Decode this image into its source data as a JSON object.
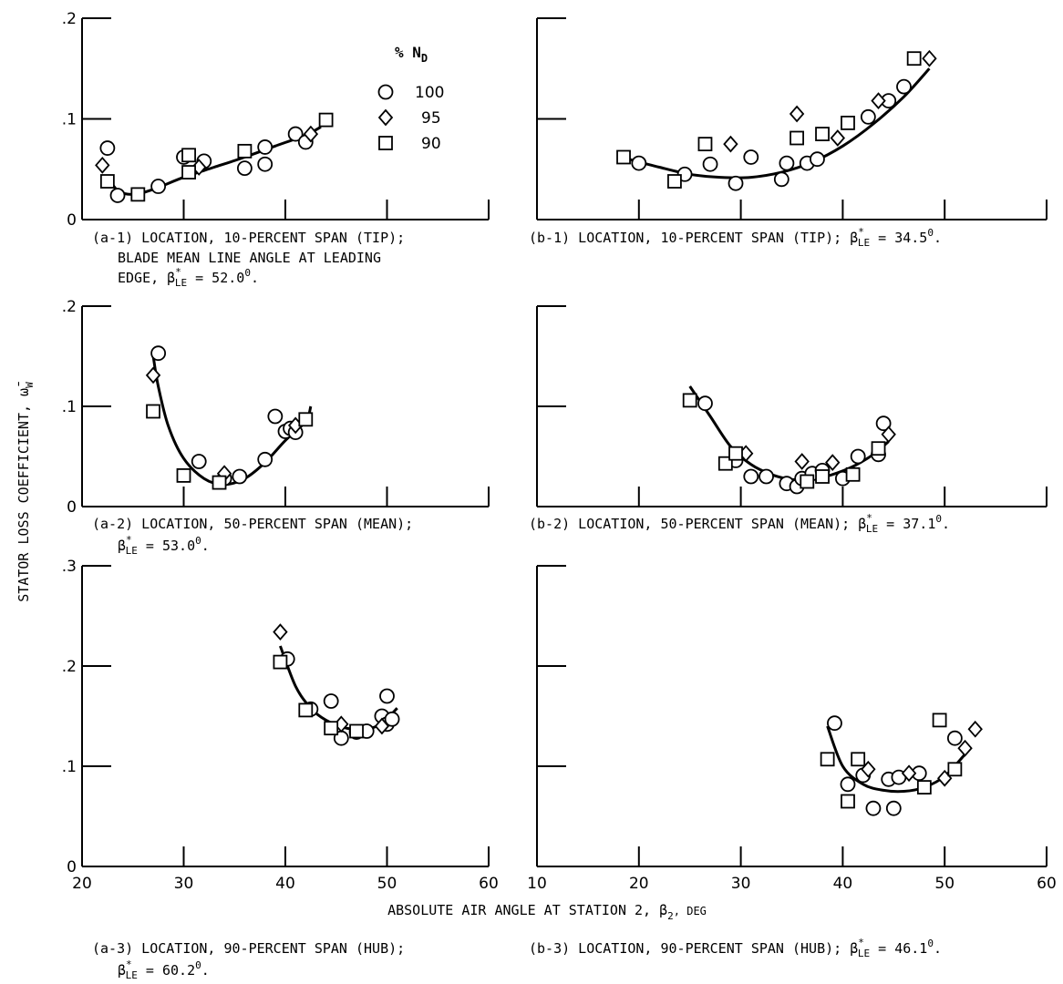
{
  "legend": {
    "title": "% N",
    "title_sub": "D",
    "entries": [
      {
        "label": "100",
        "marker": "circle"
      },
      {
        "label": "95",
        "marker": "diamond"
      },
      {
        "label": "90",
        "marker": "square"
      }
    ]
  },
  "y_axis_label": "STATOR LOSS COEFFICIENT, ω̄",
  "y_axis_label_sub": "W",
  "x_axis_label": "ABSOLUTE AIR ANGLE AT STATION 2, β",
  "x_axis_label_sub": "2",
  "x_axis_label_unit": ", DEG",
  "captions": {
    "a1_line1": "(a-1) LOCATION, 10-PERCENT SPAN (TIP);",
    "a1_line2": "BLADE MEAN LINE ANGLE AT LEADING",
    "a1_line3_pre": "EDGE, β",
    "a1_line3_post": " = 52.0",
    "a1_line3_end": ".",
    "b1_pre": "(b-1) LOCATION, 10-PERCENT SPAN (TIP); β",
    "b1_post": " = 34.5",
    "b1_end": ".",
    "a2_line1": "(a-2) LOCATION, 50-PERCENT SPAN (MEAN);",
    "a2_line2_pre": "β",
    "a2_line2_post": " = 53.0",
    "a2_line2_end": ".",
    "b2_pre": "(b-2) LOCATION, 50-PERCENT SPAN (MEAN); β",
    "b2_post": " = 37.1",
    "b2_end": ".",
    "a3_line1": "(a-3) LOCATION, 90-PERCENT SPAN (HUB);",
    "a3_line2_pre": "β",
    "a3_line2_post": " = 60.2",
    "a3_line2_end": ".",
    "b3_pre": "(b-3) LOCATION, 90-PERCENT SPAN (HUB); β",
    "b3_post": " = 46.1",
    "b3_end": ".",
    "sup_star": "*",
    "sub_LE": "LE",
    "sup_deg": "0"
  },
  "chart_data": [
    {
      "id": "a1",
      "type": "scatter",
      "xlim": [
        20,
        60
      ],
      "ylim": [
        0,
        0.2
      ],
      "xticks": [
        20,
        30,
        40,
        50,
        60
      ],
      "yticks": [
        0,
        0.1,
        0.2
      ],
      "ytick_labels": [
        "0",
        ".1",
        ".2"
      ],
      "series": [
        {
          "name": "100",
          "marker": "circle",
          "points": [
            [
              22.5,
              0.071
            ],
            [
              23.5,
              0.024
            ],
            [
              27.5,
              0.033
            ],
            [
              30,
              0.062
            ],
            [
              32,
              0.058
            ],
            [
              36,
              0.051
            ],
            [
              38,
              0.072
            ],
            [
              38,
              0.055
            ],
            [
              41,
              0.085
            ],
            [
              42,
              0.077
            ]
          ]
        },
        {
          "name": "95",
          "marker": "diamond",
          "points": [
            [
              22,
              0.054
            ],
            [
              31.5,
              0.052
            ],
            [
              42.5,
              0.085
            ]
          ]
        },
        {
          "name": "90",
          "marker": "square",
          "points": [
            [
              22.5,
              0.038
            ],
            [
              25.5,
              0.025
            ],
            [
              30.5,
              0.064
            ],
            [
              30.5,
              0.047
            ],
            [
              36,
              0.068
            ],
            [
              44,
              0.099
            ]
          ]
        }
      ],
      "curve": [
        [
          22.5,
          0.043
        ],
        [
          23.5,
          0.029
        ],
        [
          25,
          0.025
        ],
        [
          27,
          0.03
        ],
        [
          30,
          0.042
        ],
        [
          33,
          0.052
        ],
        [
          36,
          0.062
        ],
        [
          39,
          0.073
        ],
        [
          42,
          0.084
        ],
        [
          43.5,
          0.092
        ]
      ]
    },
    {
      "id": "b1",
      "type": "scatter",
      "xlim": [
        10,
        60
      ],
      "ylim": [
        0,
        0.2
      ],
      "xticks": [
        10,
        20,
        30,
        40,
        50,
        60
      ],
      "yticks": [
        0,
        0.1,
        0.2
      ],
      "series": [
        {
          "name": "100",
          "marker": "circle",
          "points": [
            [
              20,
              0.056
            ],
            [
              24.5,
              0.045
            ],
            [
              27,
              0.055
            ],
            [
              29.5,
              0.036
            ],
            [
              31,
              0.062
            ],
            [
              34,
              0.04
            ],
            [
              34.5,
              0.056
            ],
            [
              36.5,
              0.056
            ],
            [
              37.5,
              0.06
            ],
            [
              42.5,
              0.102
            ],
            [
              44.5,
              0.118
            ],
            [
              46,
              0.132
            ]
          ]
        },
        {
          "name": "95",
          "marker": "diamond",
          "points": [
            [
              29,
              0.075
            ],
            [
              35.5,
              0.105
            ],
            [
              39.5,
              0.081
            ],
            [
              43.5,
              0.118
            ],
            [
              48.5,
              0.16
            ]
          ]
        },
        {
          "name": "90",
          "marker": "square",
          "points": [
            [
              18.5,
              0.062
            ],
            [
              23.5,
              0.038
            ],
            [
              26.5,
              0.075
            ],
            [
              35.5,
              0.081
            ],
            [
              38,
              0.085
            ],
            [
              40.5,
              0.096
            ],
            [
              47,
              0.16
            ]
          ]
        }
      ],
      "curve": [
        [
          19,
          0.06
        ],
        [
          22,
          0.052
        ],
        [
          25,
          0.045
        ],
        [
          28,
          0.042
        ],
        [
          31,
          0.042
        ],
        [
          34,
          0.047
        ],
        [
          37,
          0.057
        ],
        [
          40,
          0.073
        ],
        [
          43,
          0.095
        ],
        [
          46,
          0.122
        ],
        [
          48.5,
          0.15
        ]
      ]
    },
    {
      "id": "a2",
      "type": "scatter",
      "xlim": [
        20,
        60
      ],
      "ylim": [
        0,
        0.2
      ],
      "xticks": [
        20,
        30,
        40,
        50,
        60
      ],
      "yticks": [
        0,
        0.1,
        0.2
      ],
      "ytick_labels": [
        "0",
        ".1",
        ".2"
      ],
      "series": [
        {
          "name": "100",
          "marker": "circle",
          "points": [
            [
              27.5,
              0.153
            ],
            [
              31.5,
              0.045
            ],
            [
              34,
              0.028
            ],
            [
              35.5,
              0.03
            ],
            [
              38,
              0.047
            ],
            [
              39,
              0.09
            ],
            [
              40,
              0.075
            ],
            [
              40.5,
              0.078
            ],
            [
              41,
              0.074
            ]
          ]
        },
        {
          "name": "95",
          "marker": "diamond",
          "points": [
            [
              27,
              0.131
            ],
            [
              34,
              0.033
            ],
            [
              41,
              0.081
            ]
          ]
        },
        {
          "name": "90",
          "marker": "square",
          "points": [
            [
              27,
              0.095
            ],
            [
              30,
              0.031
            ],
            [
              33.5,
              0.024
            ],
            [
              42,
              0.087
            ]
          ]
        }
      ],
      "curve": [
        [
          27,
          0.15
        ],
        [
          27.5,
          0.12
        ],
        [
          28.5,
          0.08
        ],
        [
          30,
          0.048
        ],
        [
          32,
          0.028
        ],
        [
          34,
          0.022
        ],
        [
          36,
          0.028
        ],
        [
          38,
          0.044
        ],
        [
          40,
          0.066
        ],
        [
          42,
          0.085
        ],
        [
          42.5,
          0.1
        ]
      ]
    },
    {
      "id": "b2",
      "type": "scatter",
      "xlim": [
        10,
        60
      ],
      "ylim": [
        0,
        0.2
      ],
      "xticks": [
        10,
        20,
        30,
        40,
        50,
        60
      ],
      "yticks": [
        0,
        0.1,
        0.2
      ],
      "series": [
        {
          "name": "100",
          "marker": "circle",
          "points": [
            [
              26.5,
              0.103
            ],
            [
              29.5,
              0.046
            ],
            [
              31,
              0.03
            ],
            [
              32.5,
              0.03
            ],
            [
              34.5,
              0.023
            ],
            [
              35.5,
              0.02
            ],
            [
              36,
              0.028
            ],
            [
              37,
              0.033
            ],
            [
              38,
              0.036
            ],
            [
              40,
              0.028
            ],
            [
              41.5,
              0.05
            ],
            [
              43.5,
              0.052
            ],
            [
              44,
              0.083
            ]
          ]
        },
        {
          "name": "95",
          "marker": "diamond",
          "points": [
            [
              30.5,
              0.053
            ],
            [
              36,
              0.045
            ],
            [
              39,
              0.044
            ],
            [
              44.5,
              0.072
            ]
          ]
        },
        {
          "name": "90",
          "marker": "square",
          "points": [
            [
              25,
              0.106
            ],
            [
              28.5,
              0.043
            ],
            [
              29.5,
              0.053
            ],
            [
              36.5,
              0.025
            ],
            [
              38,
              0.03
            ],
            [
              41,
              0.032
            ],
            [
              43.5,
              0.058
            ]
          ]
        }
      ],
      "curve": [
        [
          25,
          0.12
        ],
        [
          27,
          0.09
        ],
        [
          29,
          0.06
        ],
        [
          31,
          0.042
        ],
        [
          33,
          0.032
        ],
        [
          35,
          0.027
        ],
        [
          37,
          0.027
        ],
        [
          39,
          0.032
        ],
        [
          41,
          0.04
        ],
        [
          43,
          0.052
        ],
        [
          44.5,
          0.065
        ]
      ]
    },
    {
      "id": "a3",
      "type": "scatter",
      "xlim": [
        20,
        60
      ],
      "ylim": [
        0,
        0.3
      ],
      "xticks": [
        20,
        30,
        40,
        50,
        60
      ],
      "yticks": [
        0,
        0.1,
        0.2,
        0.3
      ],
      "ytick_labels": [
        "0",
        ".1",
        ".2",
        ".3"
      ],
      "xtick_labels": [
        "20",
        "30",
        "40",
        "50",
        "60"
      ],
      "series": [
        {
          "name": "100",
          "marker": "circle",
          "points": [
            [
              40.2,
              0.207
            ],
            [
              42.5,
              0.157
            ],
            [
              44.5,
              0.165
            ],
            [
              45.5,
              0.128
            ],
            [
              47,
              0.134
            ],
            [
              48,
              0.135
            ],
            [
              49.5,
              0.15
            ],
            [
              50,
              0.142
            ],
            [
              50,
              0.17
            ],
            [
              50.5,
              0.147
            ]
          ]
        },
        {
          "name": "95",
          "marker": "diamond",
          "points": [
            [
              39.5,
              0.234
            ],
            [
              45.5,
              0.142
            ],
            [
              49.5,
              0.14
            ]
          ]
        },
        {
          "name": "90",
          "marker": "square",
          "points": [
            [
              39.5,
              0.204
            ],
            [
              42,
              0.156
            ],
            [
              44.5,
              0.138
            ],
            [
              47,
              0.135
            ]
          ]
        }
      ],
      "curve": [
        [
          39.5,
          0.22
        ],
        [
          41,
          0.18
        ],
        [
          42.5,
          0.158
        ],
        [
          44,
          0.146
        ],
        [
          46,
          0.138
        ],
        [
          48,
          0.137
        ],
        [
          49.5,
          0.143
        ],
        [
          51,
          0.158
        ]
      ]
    },
    {
      "id": "b3",
      "type": "scatter",
      "xlim": [
        10,
        60
      ],
      "ylim": [
        0,
        0.3
      ],
      "xticks": [
        10,
        20,
        30,
        40,
        50,
        60
      ],
      "yticks": [
        0,
        0.1,
        0.2,
        0.3
      ],
      "xtick_labels": [
        "10",
        "20",
        "30",
        "40",
        "50",
        "60"
      ],
      "series": [
        {
          "name": "100",
          "marker": "circle",
          "points": [
            [
              39.2,
              0.143
            ],
            [
              40.5,
              0.082
            ],
            [
              42,
              0.091
            ],
            [
              43,
              0.058
            ],
            [
              44.5,
              0.087
            ],
            [
              45,
              0.058
            ],
            [
              45.5,
              0.089
            ],
            [
              47.5,
              0.093
            ],
            [
              51,
              0.128
            ]
          ]
        },
        {
          "name": "95",
          "marker": "diamond",
          "points": [
            [
              42.5,
              0.097
            ],
            [
              46.5,
              0.093
            ],
            [
              50,
              0.088
            ],
            [
              52,
              0.118
            ],
            [
              53,
              0.137
            ]
          ]
        },
        {
          "name": "90",
          "marker": "square",
          "points": [
            [
              38.5,
              0.107
            ],
            [
              40.5,
              0.065
            ],
            [
              41.5,
              0.107
            ],
            [
              48,
              0.079
            ],
            [
              49.5,
              0.146
            ],
            [
              51,
              0.097
            ]
          ]
        }
      ],
      "curve": [
        [
          38.5,
          0.14
        ],
        [
          40,
          0.1
        ],
        [
          42,
          0.082
        ],
        [
          44,
          0.076
        ],
        [
          46,
          0.075
        ],
        [
          48,
          0.079
        ],
        [
          50,
          0.09
        ],
        [
          52,
          0.112
        ]
      ]
    }
  ]
}
